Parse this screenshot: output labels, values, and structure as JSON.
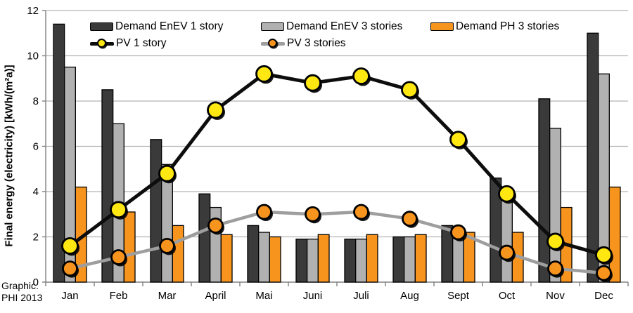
{
  "figure": {
    "footer_line1": "Graphic:",
    "footer_line2": "PHI 2013"
  },
  "chart_data": {
    "type": "combo-bar-line",
    "title": "",
    "xlabel": "",
    "ylabel": "Final energy (electricity) [kWh/(m²a)]",
    "ylim": [
      0,
      12
    ],
    "ytick_step": 2,
    "yticks": [
      0,
      2,
      4,
      6,
      8,
      10,
      12
    ],
    "grid": true,
    "legend_position": "top-inside",
    "categories": [
      "Jan",
      "Feb",
      "Mar",
      "April",
      "Mai",
      "Juni",
      "Juli",
      "Aug",
      "Sept",
      "Oct",
      "Nov",
      "Dec"
    ],
    "bar_series": [
      {
        "name": "Demand EnEV 1 story",
        "color": "#3a3a3a",
        "values": [
          11.4,
          8.5,
          6.3,
          3.9,
          2.5,
          1.9,
          1.9,
          2.0,
          2.5,
          4.6,
          8.1,
          11.0
        ]
      },
      {
        "name": "Demand EnEV 3 stories",
        "color": "#b1b1b1",
        "values": [
          9.5,
          7.0,
          5.2,
          3.3,
          2.2,
          1.9,
          1.9,
          2.0,
          2.1,
          3.7,
          6.8,
          9.2
        ]
      },
      {
        "name": "Demand PH 3 stories",
        "color": "#f7941e",
        "values": [
          4.2,
          3.1,
          2.5,
          2.1,
          2.0,
          2.1,
          2.1,
          2.1,
          2.2,
          2.2,
          3.3,
          4.2
        ]
      }
    ],
    "line_series": [
      {
        "name": "PV 1 story",
        "line_color": "#0d0d0d",
        "marker_color": "#ffe712",
        "values": [
          1.6,
          3.2,
          4.8,
          7.6,
          9.2,
          8.8,
          9.1,
          8.5,
          6.3,
          3.9,
          1.8,
          1.2
        ]
      },
      {
        "name": "PV 3 stories",
        "line_color": "#9e9e9e",
        "marker_color": "#f7941e",
        "values": [
          0.6,
          1.1,
          1.6,
          2.5,
          3.1,
          3.0,
          3.1,
          2.8,
          2.2,
          1.3,
          0.6,
          0.4
        ]
      }
    ],
    "style": {
      "gridline_color": "#b3b3b3",
      "axis_color": "#808080",
      "text_color": "#000000"
    }
  }
}
